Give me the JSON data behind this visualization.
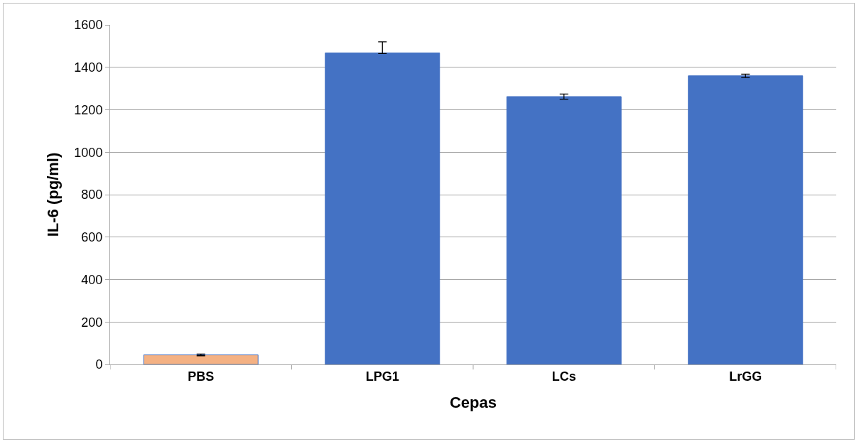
{
  "chart_data": {
    "type": "bar",
    "xlabel": "Cepas",
    "ylabel": "IL-6 (pg/ml)",
    "categories": [
      "PBS",
      "LPG1",
      "LCs",
      "LrGG"
    ],
    "values": [
      45,
      1468,
      1262,
      1360
    ],
    "colors": [
      "#f4b183",
      "#4472c4",
      "#4472c4",
      "#4472c4"
    ],
    "errors": [
      4,
      [
        1465,
        1520
      ],
      12,
      8
    ],
    "ylim": [
      0,
      1600
    ],
    "yticks": [
      0,
      200,
      400,
      600,
      800,
      1000,
      1200,
      1400,
      1600
    ],
    "grid": "y"
  }
}
